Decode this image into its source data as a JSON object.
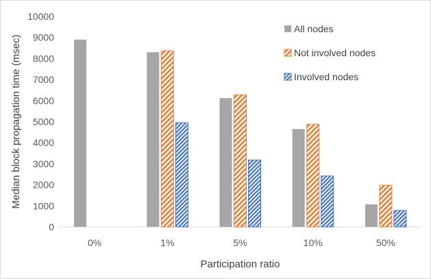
{
  "chart_data": {
    "type": "bar",
    "categories": [
      "0%",
      "1%",
      "5%",
      "10%",
      "50%"
    ],
    "series": [
      {
        "name": "All nodes",
        "values": [
          8900,
          8300,
          6120,
          4650,
          1070
        ],
        "color": "#a6a6a6",
        "pattern": "solid"
      },
      {
        "name": "Not involved nodes",
        "values": [
          null,
          8370,
          6280,
          4880,
          1980
        ],
        "color": "#ed7d31",
        "pattern": "diagonal"
      },
      {
        "name": "Involved nodes",
        "values": [
          null,
          4950,
          3180,
          2420,
          780
        ],
        "color": "#4472c4",
        "pattern": "diagonal-dense"
      }
    ],
    "xlabel": "Participation ratio",
    "ylabel": "Median block propagation time (msec)",
    "ylim": [
      0,
      10000
    ],
    "yticks": [
      0,
      1000,
      2000,
      3000,
      4000,
      5000,
      6000,
      7000,
      8000,
      9000,
      10000
    ],
    "grid": false,
    "legend_position": "top-right"
  }
}
